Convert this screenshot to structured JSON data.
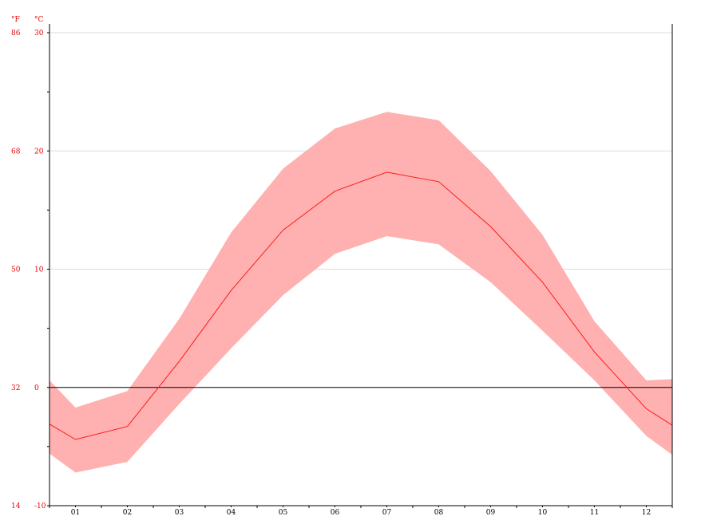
{
  "chart_data": {
    "type": "area",
    "x_categories": [
      "01",
      "02",
      "03",
      "04",
      "05",
      "06",
      "07",
      "08",
      "09",
      "10",
      "11",
      "12"
    ],
    "series": [
      {
        "role": "mean",
        "values": [
          -4.4,
          -3.3,
          2.2,
          8.2,
          13.3,
          16.6,
          18.2,
          17.4,
          13.6,
          8.9,
          3.0,
          -1.8
        ]
      },
      {
        "role": "max",
        "values": [
          -1.7,
          -0.3,
          5.8,
          13.1,
          18.5,
          21.9,
          23.3,
          22.6,
          18.3,
          12.9,
          5.6,
          0.6
        ]
      },
      {
        "role": "min",
        "values": [
          -7.2,
          -6.3,
          -1.4,
          3.3,
          7.8,
          11.3,
          12.8,
          12.1,
          8.9,
          4.8,
          0.6,
          -4.1
        ]
      }
    ],
    "edge_values": {
      "left": {
        "mean": -3.1,
        "max": 0.6,
        "min": -5.6
      },
      "right": {
        "mean": -3.2,
        "max": 0.7,
        "min": -5.7
      }
    },
    "ylim_c": [
      -10,
      30
    ],
    "y_ticks_c": [
      "30",
      "20",
      "10",
      "0",
      "-10"
    ],
    "y_ticks_f": [
      "86",
      "68",
      "50",
      "32",
      "14"
    ],
    "y_unit_f": "°F",
    "y_unit_c": "°C",
    "grid": true,
    "zero_line": true,
    "colors": {
      "band": "#ffb0b0",
      "line": "#ff1a1a",
      "grid": "#dddddd",
      "axis": "#000000",
      "tick_text": "#e60000"
    }
  }
}
